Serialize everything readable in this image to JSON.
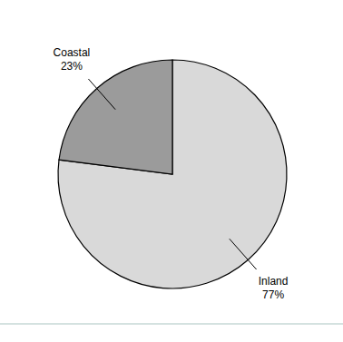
{
  "chart_data": {
    "type": "pie",
    "categories": [
      "Inland",
      "Coastal"
    ],
    "values": [
      77,
      23
    ],
    "value_labels": [
      "77%",
      "23%"
    ],
    "colors": [
      "#d9d9d9",
      "#9b9b9b"
    ],
    "data_labels": true
  }
}
